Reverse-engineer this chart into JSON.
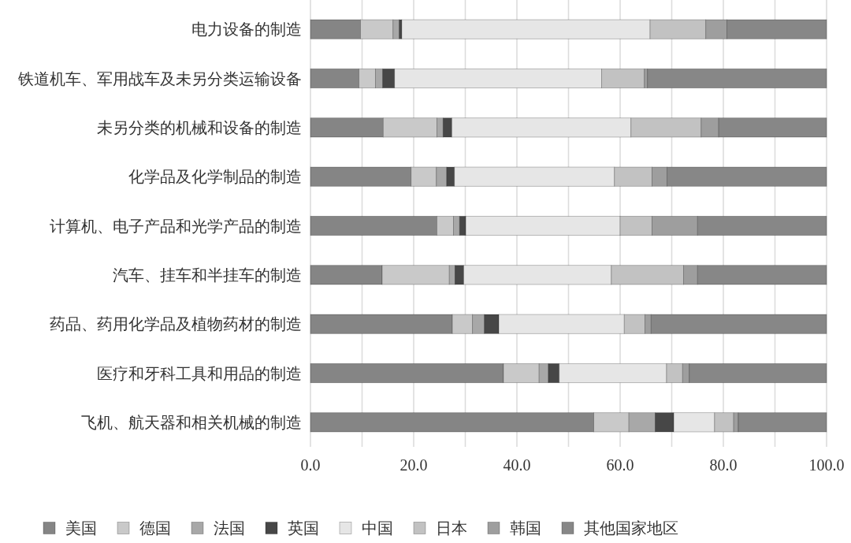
{
  "chart_data": {
    "type": "bar",
    "orientation": "horizontal",
    "stacked": true,
    "categories": [
      "电力设备的制造",
      "铁道机车、军用战车及未另分类运输设备",
      "未另分类的机械和设备的制造",
      "化学品及化学制品的制造",
      "计算机、电子产品和光学产品的制造",
      "汽车、挂车和半挂车的制造",
      "药品、药用化学品及植物药材的制造",
      "医疗和牙科工具和用品的制造",
      "飞机、航天器和相关机械的制造"
    ],
    "series": [
      {
        "name": "美国",
        "color": "#858585",
        "values": [
          9.7,
          9.4,
          14.1,
          19.5,
          24.5,
          13.9,
          27.5,
          37.4,
          54.9
        ]
      },
      {
        "name": "德国",
        "color": "#c9c9c9",
        "values": [
          6.3,
          3.2,
          10.4,
          4.9,
          3.2,
          13.0,
          3.9,
          6.9,
          6.8
        ]
      },
      {
        "name": "法国",
        "color": "#a8a8a8",
        "values": [
          1.2,
          1.4,
          1.2,
          2.0,
          1.2,
          1.1,
          2.3,
          1.8,
          5.1
        ]
      },
      {
        "name": "英国",
        "color": "#474747",
        "values": [
          0.5,
          2.3,
          1.7,
          1.5,
          1.2,
          1.7,
          2.8,
          2.1,
          3.6
        ]
      },
      {
        "name": "中国",
        "color": "#e6e6e6",
        "values": [
          48.1,
          40.1,
          34.7,
          31.0,
          29.9,
          28.6,
          24.3,
          20.8,
          7.9
        ]
      },
      {
        "name": "日本",
        "color": "#c2c2c2",
        "values": [
          10.8,
          8.3,
          13.6,
          7.3,
          6.2,
          14.0,
          4.0,
          3.1,
          3.7
        ]
      },
      {
        "name": "韩国",
        "color": "#9e9e9e",
        "values": [
          4.1,
          0.6,
          3.4,
          2.9,
          8.8,
          2.7,
          1.2,
          1.3,
          0.9
        ]
      },
      {
        "name": "其他国家地区",
        "color": "#878787",
        "values": [
          19.3,
          34.7,
          20.9,
          30.9,
          25.0,
          25.0,
          34.0,
          26.6,
          17.1
        ]
      }
    ],
    "xlim": [
      0,
      100
    ],
    "xticks": [
      {
        "value": 0,
        "label": "0.0"
      },
      {
        "value": 10,
        "label": null
      },
      {
        "value": 20,
        "label": "20.0"
      },
      {
        "value": 30,
        "label": null
      },
      {
        "value": 40,
        "label": "40.0"
      },
      {
        "value": 50,
        "label": null
      },
      {
        "value": 60,
        "label": "60.0"
      },
      {
        "value": 70,
        "label": null
      },
      {
        "value": 80,
        "label": "80.0"
      },
      {
        "value": 90,
        "label": null
      },
      {
        "value": 100,
        "label": "100.0"
      }
    ],
    "grid": true,
    "legend": "bottom"
  }
}
